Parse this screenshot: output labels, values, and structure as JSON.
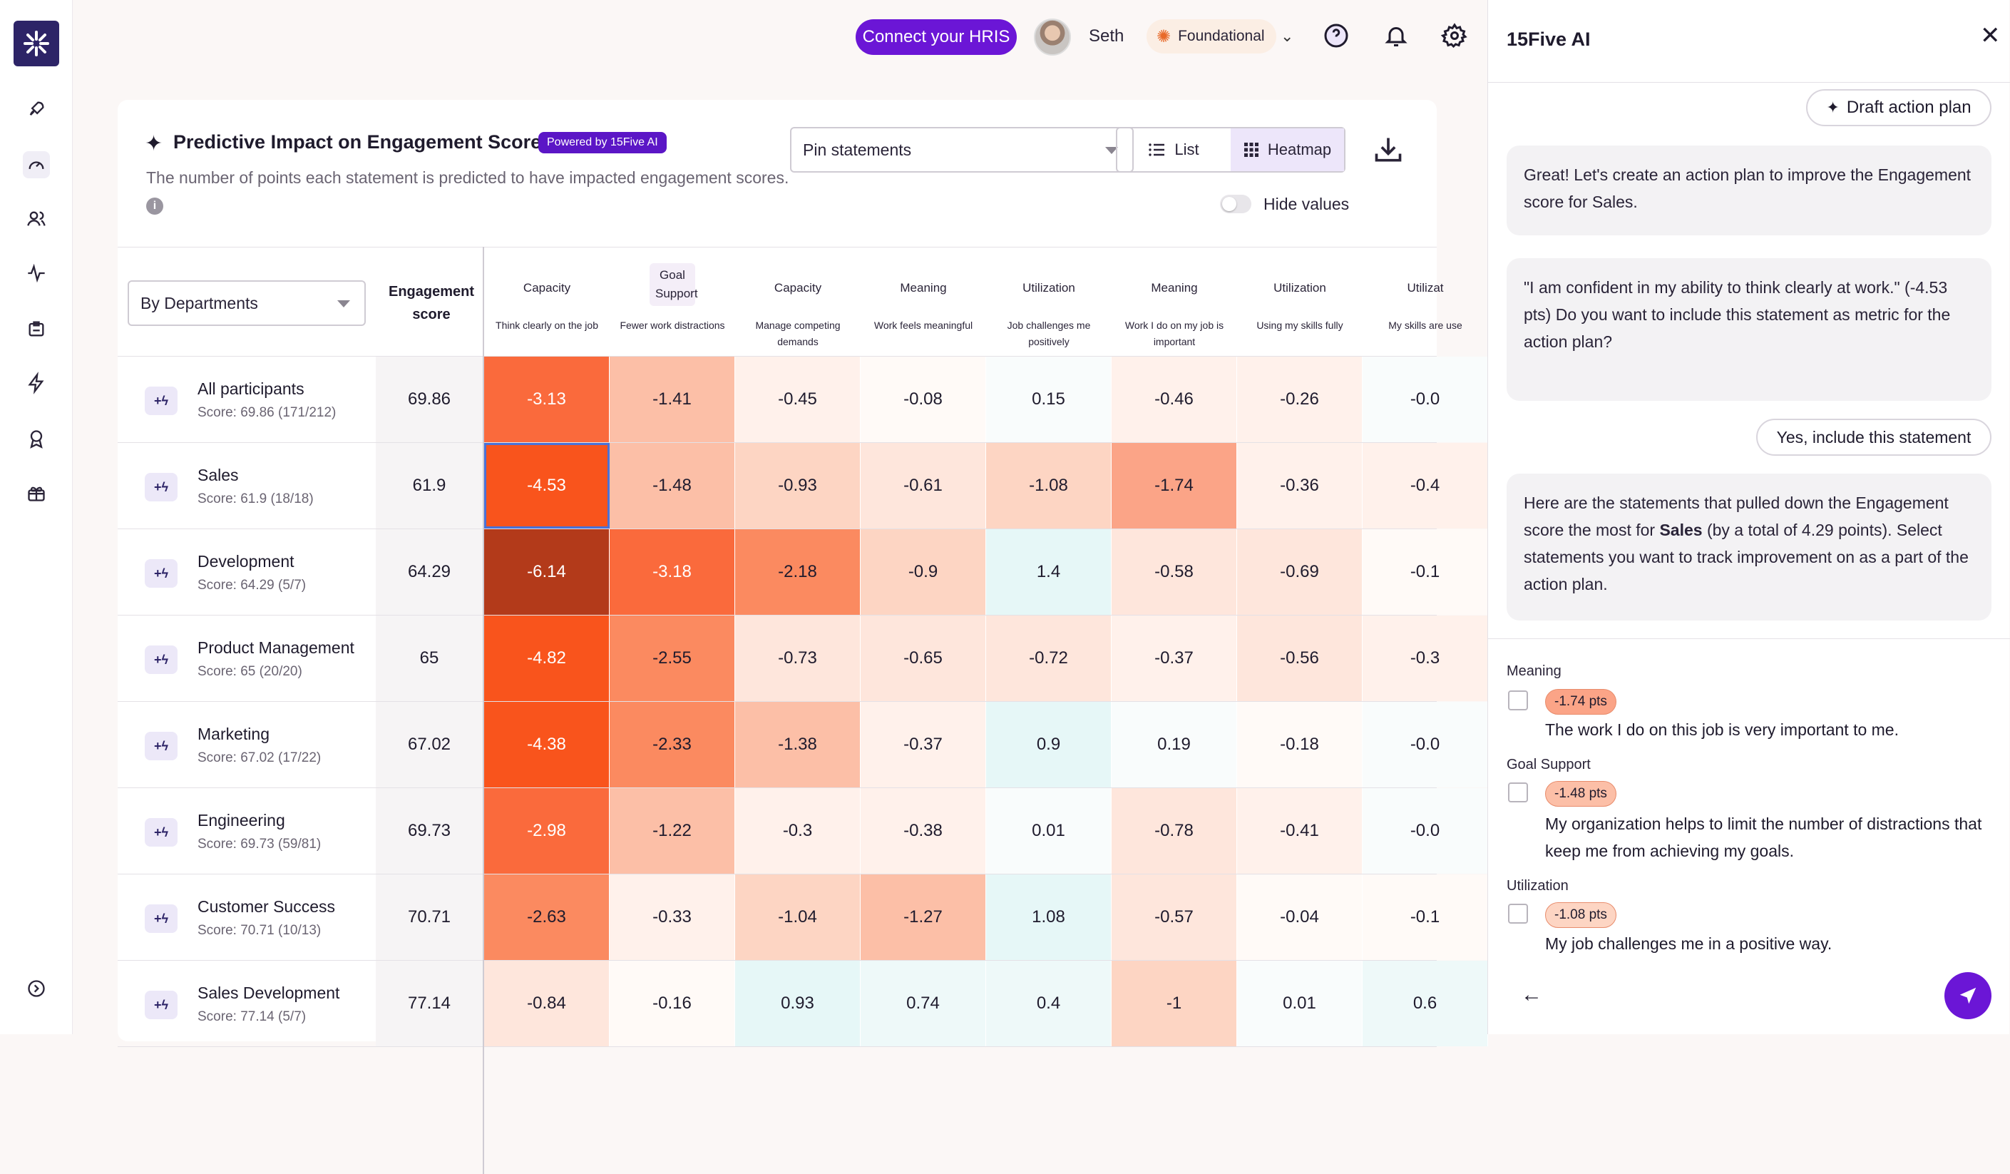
{
  "topbar": {
    "hris_label": "Connect your HRIS",
    "user_name": "Seth",
    "plan_label": "Foundational"
  },
  "sidebar": {
    "items": [
      "rocket-icon",
      "gauge-icon",
      "people-icon",
      "pulse-icon",
      "clipboard-icon",
      "bolt-icon",
      "badge-icon",
      "gift-icon",
      "expand-icon"
    ]
  },
  "card": {
    "title": "Predictive Impact on Engagement Scores",
    "badge": "Powered by 15Five AI",
    "subtitle": "The number of points each statement is predicted to have impacted engagement scores.",
    "pin_placeholder": "Pin statements",
    "view_list": "List",
    "view_heatmap": "Heatmap",
    "active_view": "Heatmap",
    "hide_values": "Hide values"
  },
  "table": {
    "group_select": "By Departments",
    "engagement_header": "Engagement score",
    "columns": [
      {
        "category": "Capacity",
        "statement": "Think clearly on the job"
      },
      {
        "category": "Goal Support",
        "statement": "Fewer work distractions"
      },
      {
        "category": "Capacity",
        "statement": "Manage competing demands"
      },
      {
        "category": "Meaning",
        "statement": "Work feels meaningful"
      },
      {
        "category": "Utilization",
        "statement": "Job challenges me positively"
      },
      {
        "category": "Meaning",
        "statement": "Work I do on my job is important"
      },
      {
        "category": "Utilization",
        "statement": "Using my skills fully"
      },
      {
        "category": "Utilizat",
        "statement": "My skills are use"
      }
    ],
    "rows": [
      {
        "name": "All participants",
        "score": "Score: 69.86 (171/212)",
        "engagement": "69.86",
        "values": [
          "-3.13",
          "-1.41",
          "-0.45",
          "-0.08",
          "0.15",
          "-0.46",
          "-0.26",
          "-0.0"
        ]
      },
      {
        "name": "Sales",
        "score": "Score: 61.9 (18/18)",
        "engagement": "61.9",
        "values": [
          "-4.53",
          "-1.48",
          "-0.93",
          "-0.61",
          "-1.08",
          "-1.74",
          "-0.36",
          "-0.4"
        ]
      },
      {
        "name": "Development",
        "score": "Score: 64.29 (5/7)",
        "engagement": "64.29",
        "values": [
          "-6.14",
          "-3.18",
          "-2.18",
          "-0.9",
          "1.4",
          "-0.58",
          "-0.69",
          "-0.1"
        ]
      },
      {
        "name": "Product Management",
        "score": "Score: 65 (20/20)",
        "engagement": "65",
        "values": [
          "-4.82",
          "-2.55",
          "-0.73",
          "-0.65",
          "-0.72",
          "-0.37",
          "-0.56",
          "-0.3"
        ]
      },
      {
        "name": "Marketing",
        "score": "Score: 67.02 (17/22)",
        "engagement": "67.02",
        "values": [
          "-4.38",
          "-2.33",
          "-1.38",
          "-0.37",
          "0.9",
          "0.19",
          "-0.18",
          "-0.0"
        ]
      },
      {
        "name": "Engineering",
        "score": "Score: 69.73 (59/81)",
        "engagement": "69.73",
        "values": [
          "-2.98",
          "-1.22",
          "-0.3",
          "-0.38",
          "0.01",
          "-0.78",
          "-0.41",
          "-0.0"
        ]
      },
      {
        "name": "Customer Success",
        "score": "Score: 70.71 (10/13)",
        "engagement": "70.71",
        "values": [
          "-2.63",
          "-0.33",
          "-1.04",
          "-1.27",
          "1.08",
          "-0.57",
          "-0.04",
          "-0.1"
        ]
      },
      {
        "name": "Sales Development",
        "score": "Score: 77.14 (5/7)",
        "engagement": "77.14",
        "values": [
          "-0.84",
          "-0.16",
          "0.93",
          "0.74",
          "0.4",
          "-1",
          "0.01",
          "0.6"
        ]
      }
    ],
    "selected_cell": {
      "row": 1,
      "col": 0
    }
  },
  "panel": {
    "title": "15Five AI",
    "draft_label": "Draft action plan",
    "msg1": "Great! Let's create an action plan to improve the Engagement score for Sales.",
    "msg2": "\"I am confident in my ability to think clearly at work.\" (-4.53 pts) Do you want to include this statement as metric for the action plan?",
    "reply_label": "Yes, include this statement",
    "msg3_a": "Here are the statements that pulled down the Engagement score the most for ",
    "msg3_dept": "Sales",
    "msg3_b": " (by a total of 4.29 points). Select statements you want to track improvement on as a part of the action plan.",
    "statements": [
      {
        "category": "Meaning",
        "pts": "-1.74 pts",
        "text": "The work I do on this job is very important to me."
      },
      {
        "category": "Goal Support",
        "pts": "-1.48 pts",
        "text": "My organization helps to limit the number of distractions that keep me from achieving my goals."
      },
      {
        "category": "Utilization",
        "pts": "-1.08 pts",
        "text": "My job challenges me in a positive way."
      }
    ]
  },
  "colors": {
    "accent": "#6b16d6",
    "negative_strong": "#b33a1a",
    "negative": "#f9541c",
    "positive": "#e6f7f7",
    "sidebar_logo": "#2d2467"
  }
}
